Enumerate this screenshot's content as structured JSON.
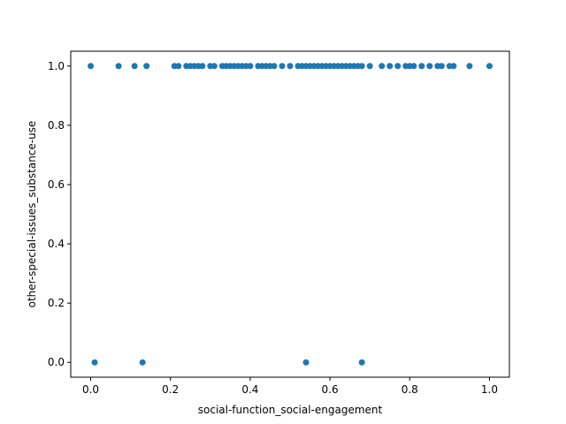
{
  "chart_data": {
    "type": "scatter",
    "title": "",
    "xlabel": "social-function_social-engagement",
    "ylabel": "other-special-issues_substance-use",
    "xlim": [
      -0.05,
      1.05
    ],
    "ylim": [
      -0.05,
      1.05
    ],
    "xticks": [
      0.0,
      0.2,
      0.4,
      0.6,
      0.8,
      1.0
    ],
    "yticks": [
      0.0,
      0.2,
      0.4,
      0.6,
      0.8,
      1.0
    ],
    "xtick_labels": [
      "0.0",
      "0.2",
      "0.4",
      "0.6",
      "0.8",
      "1.0"
    ],
    "ytick_labels": [
      "0.0",
      "0.2",
      "0.4",
      "0.6",
      "0.8",
      "1.0"
    ],
    "grid": false,
    "marker_color": "#1f77b4",
    "series": [
      {
        "points": [
          [
            0.0,
            1
          ],
          [
            0.07,
            1
          ],
          [
            0.11,
            1
          ],
          [
            0.14,
            1
          ],
          [
            0.21,
            1
          ],
          [
            0.22,
            1
          ],
          [
            0.24,
            1
          ],
          [
            0.25,
            1
          ],
          [
            0.26,
            1
          ],
          [
            0.27,
            1
          ],
          [
            0.28,
            1
          ],
          [
            0.3,
            1
          ],
          [
            0.31,
            1
          ],
          [
            0.33,
            1
          ],
          [
            0.34,
            1
          ],
          [
            0.35,
            1
          ],
          [
            0.36,
            1
          ],
          [
            0.37,
            1
          ],
          [
            0.38,
            1
          ],
          [
            0.39,
            1
          ],
          [
            0.4,
            1
          ],
          [
            0.42,
            1
          ],
          [
            0.43,
            1
          ],
          [
            0.44,
            1
          ],
          [
            0.45,
            1
          ],
          [
            0.46,
            1
          ],
          [
            0.48,
            1
          ],
          [
            0.5,
            1
          ],
          [
            0.52,
            1
          ],
          [
            0.53,
            1
          ],
          [
            0.54,
            1
          ],
          [
            0.55,
            1
          ],
          [
            0.56,
            1
          ],
          [
            0.57,
            1
          ],
          [
            0.58,
            1
          ],
          [
            0.59,
            1
          ],
          [
            0.6,
            1
          ],
          [
            0.61,
            1
          ],
          [
            0.62,
            1
          ],
          [
            0.63,
            1
          ],
          [
            0.64,
            1
          ],
          [
            0.65,
            1
          ],
          [
            0.66,
            1
          ],
          [
            0.67,
            1
          ],
          [
            0.68,
            1
          ],
          [
            0.7,
            1
          ],
          [
            0.73,
            1
          ],
          [
            0.75,
            1
          ],
          [
            0.77,
            1
          ],
          [
            0.79,
            1
          ],
          [
            0.8,
            1
          ],
          [
            0.81,
            1
          ],
          [
            0.83,
            1
          ],
          [
            0.85,
            1
          ],
          [
            0.87,
            1
          ],
          [
            0.88,
            1
          ],
          [
            0.9,
            1
          ],
          [
            0.91,
            1
          ],
          [
            0.95,
            1
          ],
          [
            1.0,
            1
          ],
          [
            0.01,
            0
          ],
          [
            0.13,
            0
          ],
          [
            0.54,
            0
          ],
          [
            0.68,
            0
          ]
        ]
      }
    ]
  }
}
